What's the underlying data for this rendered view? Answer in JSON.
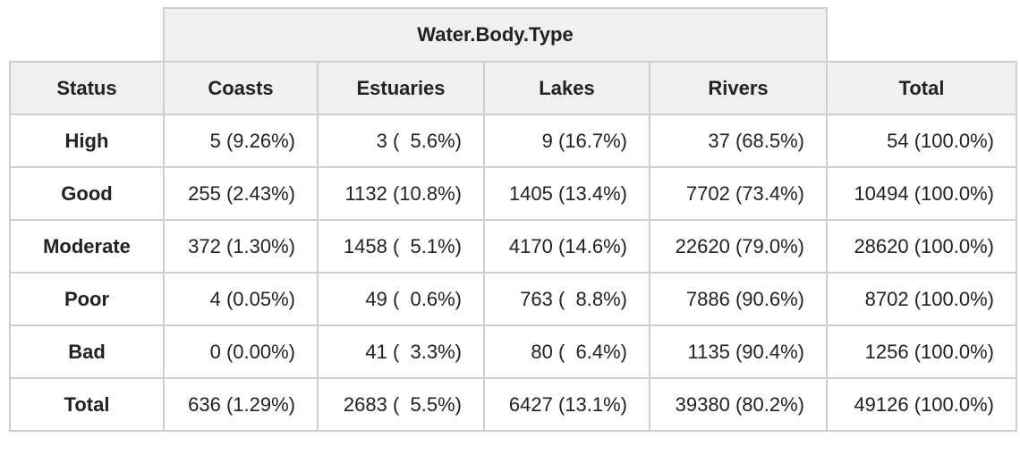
{
  "table": {
    "group_header": "Water.Body.Type",
    "columns": [
      "Status",
      "Coasts",
      "Estuaries",
      "Lakes",
      "Rivers",
      "Total"
    ],
    "rows": [
      {
        "label": "High",
        "cells": [
          "5 (9.26%)",
          "3 (  5.6%)",
          "9 (16.7%)",
          "37 (68.5%)",
          "54 (100.0%)"
        ]
      },
      {
        "label": "Good",
        "cells": [
          "255 (2.43%)",
          "1132 (10.8%)",
          "1405 (13.4%)",
          "7702 (73.4%)",
          "10494 (100.0%)"
        ]
      },
      {
        "label": "Moderate",
        "cells": [
          "372 (1.30%)",
          "1458 (  5.1%)",
          "4170 (14.6%)",
          "22620 (79.0%)",
          "28620 (100.0%)"
        ]
      },
      {
        "label": "Poor",
        "cells": [
          "4 (0.05%)",
          "49 (  0.6%)",
          "763 (  8.8%)",
          "7886 (90.6%)",
          "8702 (100.0%)"
        ]
      },
      {
        "label": "Bad",
        "cells": [
          "0 (0.00%)",
          "41 (  3.3%)",
          "80 (  6.4%)",
          "1135 (90.4%)",
          "1256 (100.0%)"
        ]
      },
      {
        "label": "Total",
        "cells": [
          "636 (1.29%)",
          "2683 (  5.5%)",
          "6427 (13.1%)",
          "39380 (80.2%)",
          "49126 (100.0%)"
        ]
      }
    ]
  }
}
